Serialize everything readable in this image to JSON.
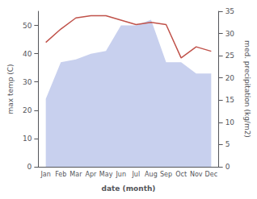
{
  "chart_data": {
    "type": "line",
    "xlabel": "date (month)",
    "ylabel": "max temp (C)",
    "y2label": "med. precipitation (kg/m2)",
    "categories": [
      "Jan",
      "Feb",
      "Mar",
      "Apr",
      "May",
      "Jun",
      "Jul",
      "Aug",
      "Sep",
      "Oct",
      "Nov",
      "Dec"
    ],
    "series": [
      {
        "type": "area",
        "color": "#c8d0ee",
        "values": [
          24,
          37,
          38,
          40,
          41,
          50,
          50,
          52,
          37,
          37,
          33,
          33
        ]
      },
      {
        "type": "line",
        "color": "#c0524a",
        "axis": "y2",
        "values": [
          28.0,
          31.0,
          33.5,
          34.0,
          34.0,
          33.0,
          32.0,
          32.5,
          32.0,
          24.5,
          27.0,
          26.0
        ]
      }
    ],
    "ylim": [
      0,
      55
    ],
    "yticks": [
      0,
      10,
      20,
      30,
      40,
      50
    ],
    "y2lim": [
      0,
      35
    ],
    "y2ticks": [
      0,
      5,
      10,
      15,
      20,
      25,
      30,
      35
    ],
    "grid": false
  }
}
